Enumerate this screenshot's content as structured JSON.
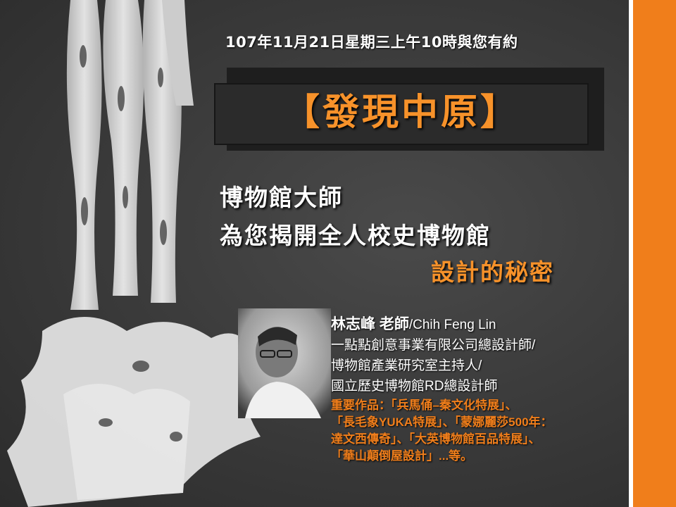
{
  "event_date": "107年11月21日星期三上午10時與您有約",
  "title": "【發現中原】",
  "headline": {
    "line1": "博物館大師",
    "line2": "為您揭開全人校史博物館",
    "line3": "設計的秘密"
  },
  "speaker": {
    "name": "林志峰 老師",
    "name_en": "/Chih Feng Lin",
    "roles": [
      "一點點創意事業有限公司總設計師/",
      "博物館產業研究室主持人/",
      "國立歷史博物館RD總設計師"
    ]
  },
  "works": [
    "重要作品：「兵馬俑–秦文化特展」、",
    "「長毛象YUKA特展」、「蒙娜麗莎500年：",
    "達文西傳奇」、「大英博物館百品特展」、",
    "「華山顛倒屋設計」...等。"
  ],
  "colors": {
    "accent_orange": "#f07e1b",
    "title_orange": "#f7922a",
    "background": "#3c3c3c",
    "text": "#ffffff"
  }
}
